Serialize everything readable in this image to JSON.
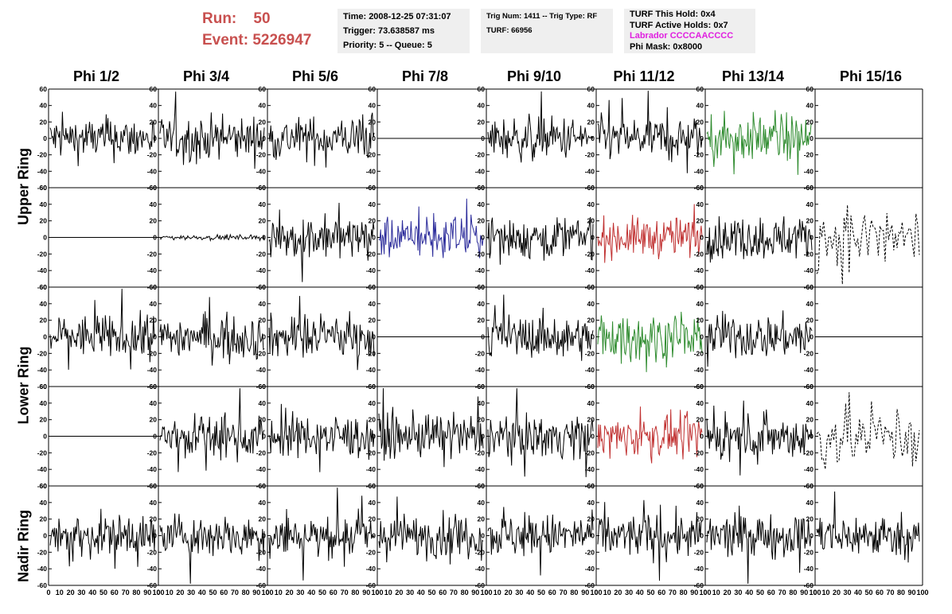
{
  "run_block": {
    "run_label": "Run:",
    "run_value": "50",
    "event_label": "Event:",
    "event_value": "5226947"
  },
  "info_time": {
    "time": "Time: 2008-12-25 07:31:07",
    "trigger": "Trigger: 73.638587 ms",
    "priority": "Priority: 5 -- Queue: 5"
  },
  "info_trig": {
    "trig": "Trig Num: 1411 -- Trig Type: RF",
    "blank": "",
    "turf": "TURF: 66956"
  },
  "info_turf": {
    "hold": "TURF This Hold: 0x4",
    "active": "TURF Active Holds: 0x7",
    "labrador": "Labrador CCCCAACCCC",
    "mask": "Phi Mask: 0x8000"
  },
  "phi_headers": [
    "Phi 1/2",
    "Phi 3/4",
    "Phi 5/6",
    "Phi 7/8",
    "Phi 9/10",
    "Phi 11/12",
    "Phi 13/14",
    "Phi 15/16"
  ],
  "ring_labels": [
    "Upper Ring",
    "Lower Ring",
    "Nadir Ring"
  ],
  "colors": {
    "trace_default": "#000000",
    "trace_green": "#2e8b2e",
    "trace_blue": "#2a2a9a",
    "trace_red": "#c03030",
    "run_text": "#c8504f",
    "labrador_text": "#e020e0",
    "info_bg": "#efefef"
  },
  "chart_data": {
    "type": "line",
    "y_ticks": [
      "60",
      "40",
      "20",
      "0",
      "-20",
      "-40",
      "-60"
    ],
    "ylim": [
      -60,
      60
    ],
    "x_ticks_bottom": [
      "0",
      "10",
      "20",
      "30",
      "40",
      "50",
      "60",
      "70",
      "80",
      "90",
      "100"
    ],
    "xlim": [
      0,
      100
    ],
    "rows": [
      [
        "trace",
        "trace",
        "trace",
        "flat",
        "trace",
        "trace",
        "green",
        "flat"
      ],
      [
        "flat",
        "small",
        "trace",
        "blue",
        "trace",
        "red",
        "trace",
        "dashed"
      ],
      [
        "trace",
        "trace",
        "trace",
        "flat",
        "trace",
        "green",
        "trace",
        "flat"
      ],
      [
        "flat",
        "trace",
        "trace",
        "trace",
        "trace",
        "red",
        "trace",
        "dashed"
      ],
      [
        "trace",
        "trace",
        "trace",
        "trace",
        "trace",
        "trace",
        "trace",
        "trace"
      ]
    ]
  }
}
